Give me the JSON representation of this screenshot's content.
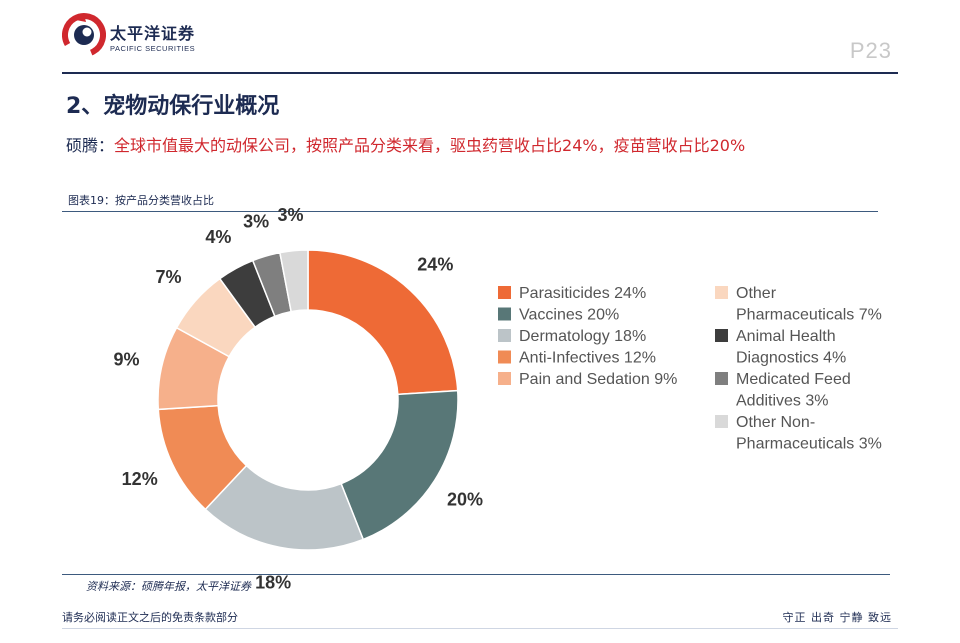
{
  "header": {
    "company_cn": "太平洋证券",
    "company_en": "PACIFIC SECURITIES",
    "page_number": "P23"
  },
  "section": {
    "title": "2、宠物动保行业概况"
  },
  "highlight": {
    "label": "硕腾：",
    "text": "全球市值最大的动保公司，按照产品分类来看，驱虫药营收占比24%，疫苗营收占比20%"
  },
  "figure": {
    "caption": "图表19：按产品分类营收占比",
    "source": "资料来源：硕腾年报，太平洋证券"
  },
  "footer": {
    "disclaimer": "请务必阅读正文之后的免责条款部分",
    "motto": "守正 出奇 宁静 致远"
  },
  "chart_data": {
    "type": "pie",
    "style": "donut",
    "title": "按产品分类营收占比",
    "unit": "%",
    "slices": [
      {
        "label": "Parasiticides",
        "value": 24,
        "value_label": "24%",
        "legend_lines": [
          "Parasiticides 24%"
        ],
        "color": "#ee6a36"
      },
      {
        "label": "Vaccines",
        "value": 20,
        "value_label": "20%",
        "legend_lines": [
          "Vaccines 20%"
        ],
        "color": "#587777"
      },
      {
        "label": "Dermatology",
        "value": 18,
        "value_label": "18%",
        "legend_lines": [
          "Dermatology 18%"
        ],
        "color": "#bcc4c8"
      },
      {
        "label": "Anti-Infectives",
        "value": 12,
        "value_label": "12%",
        "legend_lines": [
          "Anti-Infectives 12%"
        ],
        "color": "#f08b55"
      },
      {
        "label": "Pain and Sedation",
        "value": 9,
        "value_label": "9%",
        "legend_lines": [
          "Pain and Sedation 9%"
        ],
        "color": "#f6b08b"
      },
      {
        "label": "Other Pharmaceuticals",
        "value": 7,
        "value_label": "7%",
        "legend_lines": [
          "Other",
          "Pharmaceuticals 7%"
        ],
        "color": "#fad7bf"
      },
      {
        "label": "Animal Health Diagnostics",
        "value": 4,
        "value_label": "4%",
        "legend_lines": [
          "Animal Health",
          "Diagnostics 4%"
        ],
        "color": "#3d3d3d"
      },
      {
        "label": "Medicated Feed Additives",
        "value": 3,
        "value_label": "3%",
        "legend_lines": [
          "Medicated Feed",
          "Additives 3%"
        ],
        "color": "#7f7f7f"
      },
      {
        "label": "Other Non-Pharmaceuticals",
        "value": 3,
        "value_label": "3%",
        "legend_lines": [
          "Other Non-",
          "Pharmaceuticals 3%"
        ],
        "color": "#d9d9d9"
      }
    ],
    "legend_position": "right"
  }
}
